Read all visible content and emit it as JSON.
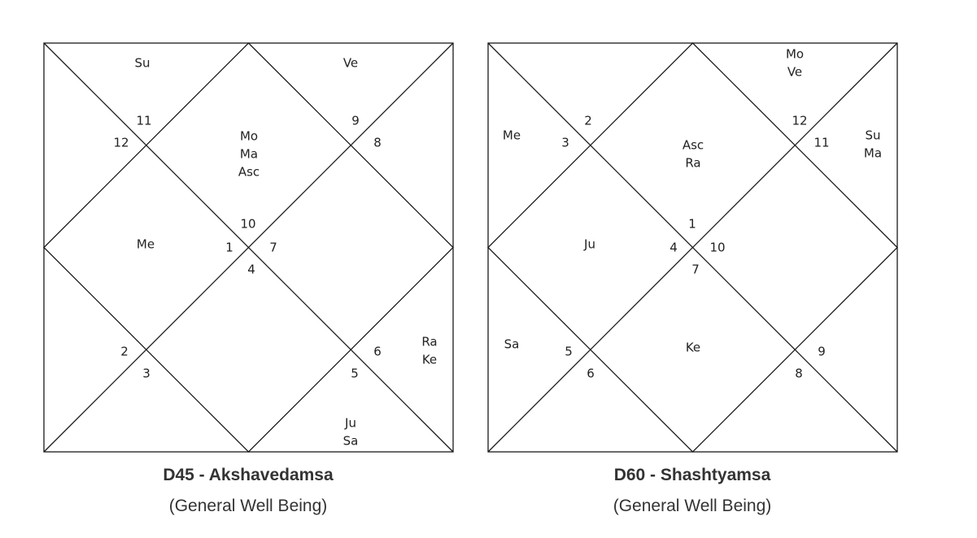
{
  "charts": [
    {
      "title": "D45 - Akshavedamsa",
      "subtitle": "(General Well Being)",
      "houses": [
        {
          "num": "10",
          "planets": [
            "Mo",
            "Ma",
            "Asc"
          ]
        },
        {
          "num": "11",
          "planets": [
            "Su"
          ]
        },
        {
          "num": "12",
          "planets": []
        },
        {
          "num": "1",
          "planets": [
            "Me"
          ]
        },
        {
          "num": "2",
          "planets": []
        },
        {
          "num": "3",
          "planets": []
        },
        {
          "num": "4",
          "planets": []
        },
        {
          "num": "5",
          "planets": [
            "Ju",
            "Sa"
          ]
        },
        {
          "num": "6",
          "planets": [
            "Ra",
            "Ke"
          ]
        },
        {
          "num": "7",
          "planets": []
        },
        {
          "num": "8",
          "planets": []
        },
        {
          "num": "9",
          "planets": [
            "Ve"
          ]
        }
      ]
    },
    {
      "title": "D60 - Shashtyamsa",
      "subtitle": "(General Well Being)",
      "houses": [
        {
          "num": "1",
          "planets": [
            "Asc",
            "Ra"
          ]
        },
        {
          "num": "2",
          "planets": []
        },
        {
          "num": "3",
          "planets": [
            "Me"
          ]
        },
        {
          "num": "4",
          "planets": [
            "Ju"
          ]
        },
        {
          "num": "5",
          "planets": [
            "Sa"
          ]
        },
        {
          "num": "6",
          "planets": []
        },
        {
          "num": "7",
          "planets": [
            "Ke"
          ]
        },
        {
          "num": "8",
          "planets": []
        },
        {
          "num": "9",
          "planets": []
        },
        {
          "num": "10",
          "planets": []
        },
        {
          "num": "11",
          "planets": [
            "Su",
            "Ma"
          ]
        },
        {
          "num": "12",
          "planets": [
            "Mo",
            "Ve"
          ]
        }
      ]
    }
  ]
}
